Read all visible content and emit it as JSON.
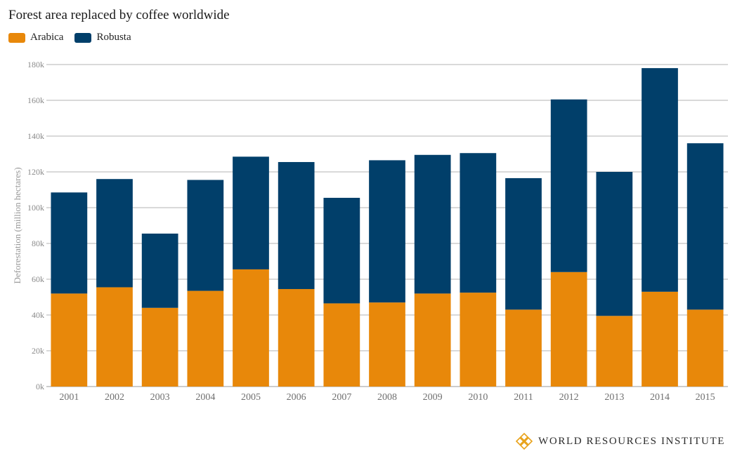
{
  "title": "Forest area replaced by coffee worldwide",
  "footer": {
    "org_name": "WORLD RESOURCES INSTITUTE",
    "logo_icon": "wri-logo-icon"
  },
  "colors": {
    "arabica": "#e8880a",
    "robusta": "#013f6a",
    "grid": "#9a9a9a"
  },
  "chart_data": {
    "type": "bar",
    "stacked": true,
    "title": "Forest area replaced by coffee worldwide",
    "xlabel": "",
    "ylabel": "Deforestation (million hectares)",
    "ylim": [
      0,
      180000
    ],
    "yticks": [
      0,
      20000,
      40000,
      60000,
      80000,
      100000,
      120000,
      140000,
      160000,
      180000
    ],
    "ytick_labels": [
      "0k",
      "20k",
      "40k",
      "60k",
      "80k",
      "100k",
      "120k",
      "140k",
      "160k",
      "180k"
    ],
    "grid": true,
    "legend_position": "top-left",
    "categories": [
      "2001",
      "2002",
      "2003",
      "2004",
      "2005",
      "2006",
      "2007",
      "2008",
      "2009",
      "2010",
      "2011",
      "2012",
      "2013",
      "2014",
      "2015"
    ],
    "series": [
      {
        "name": "Arabica",
        "color": "#e8880a",
        "values": [
          52000,
          55500,
          44000,
          53500,
          65500,
          54500,
          46500,
          47000,
          52000,
          52500,
          43000,
          64000,
          39500,
          53000,
          43000
        ]
      },
      {
        "name": "Robusta",
        "color": "#013f6a",
        "values": [
          56500,
          60500,
          41500,
          62000,
          63000,
          71000,
          59000,
          79500,
          77500,
          78000,
          73500,
          96500,
          80500,
          125000,
          93000
        ]
      }
    ]
  }
}
